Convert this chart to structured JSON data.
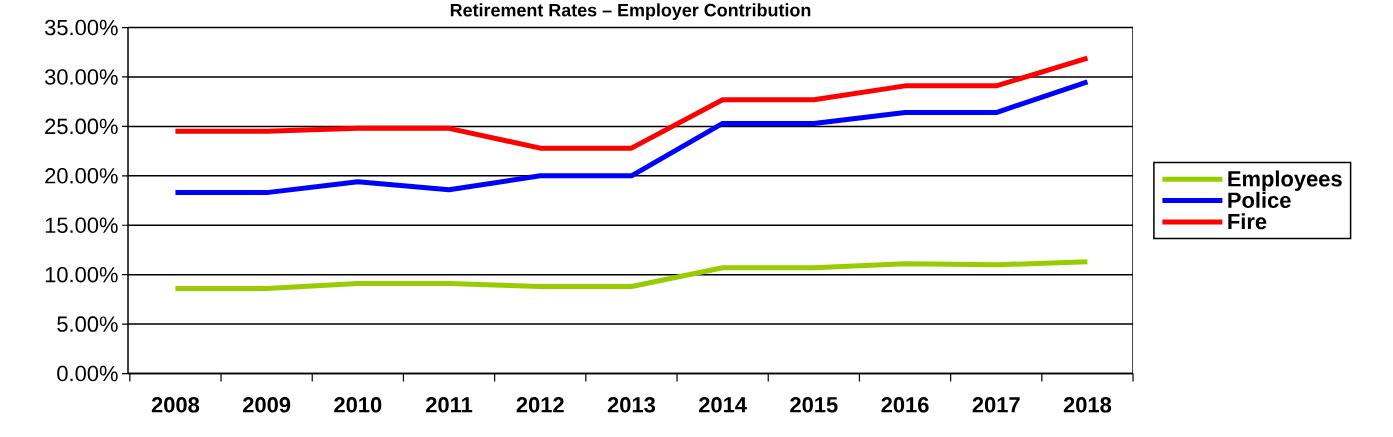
{
  "chart_data": {
    "type": "line",
    "title": "Retirement Rates – Employer Contribution",
    "categories": [
      "2008",
      "2009",
      "2010",
      "2011",
      "2012",
      "2013",
      "2014",
      "2015",
      "2016",
      "2017",
      "2018"
    ],
    "series": [
      {
        "name": "Employees",
        "color": "#99cc00",
        "values": [
          8.6,
          8.6,
          9.1,
          9.1,
          8.8,
          8.8,
          10.7,
          10.7,
          11.1,
          11.0,
          11.3
        ]
      },
      {
        "name": "Police",
        "color": "#0000ff",
        "values": [
          18.3,
          18.3,
          19.4,
          18.6,
          20.0,
          20.0,
          25.3,
          25.3,
          26.4,
          26.4,
          29.5
        ]
      },
      {
        "name": "Fire",
        "color": "#ff0000",
        "values": [
          24.5,
          24.5,
          24.8,
          24.8,
          22.8,
          22.8,
          27.7,
          27.7,
          29.1,
          29.1,
          31.9
        ]
      }
    ],
    "ylim": [
      0,
      35
    ],
    "yticks": [
      {
        "value": 0,
        "label": "0.00%"
      },
      {
        "value": 5,
        "label": "5.00%"
      },
      {
        "value": 10,
        "label": "10.00%"
      },
      {
        "value": 15,
        "label": "15.00%"
      },
      {
        "value": 20,
        "label": "20.00%"
      },
      {
        "value": 25,
        "label": "25.00%"
      },
      {
        "value": 30,
        "label": "30.00%"
      },
      {
        "value": 35,
        "label": "35.00%"
      }
    ],
    "grid": "y",
    "legend": "right",
    "marker": "none",
    "line_style": "solid"
  }
}
